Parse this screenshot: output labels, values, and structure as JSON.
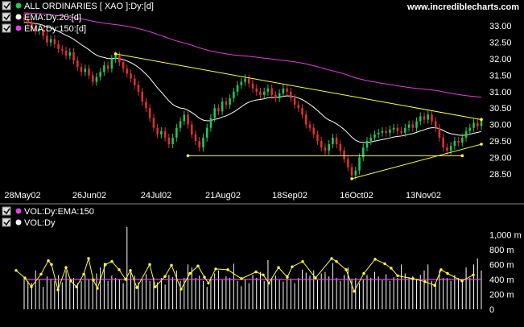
{
  "site": "www.incrediblecharts.com",
  "price_panel": {
    "legend": [
      {
        "label": "ALL ORDINARIES [ XAO ]:Dy:[d]",
        "color": "#22c55e"
      },
      {
        "label": "EMA:Dy:20:[d]",
        "color": "#ffffff"
      },
      {
        "label": "EMA:Dy:150:[d]",
        "color": "#e040e0"
      }
    ]
  },
  "volume_panel": {
    "legend": [
      {
        "label": "VOL:Dy:EMA:150",
        "color": "#e040e0"
      },
      {
        "label": "VOL:Dy",
        "color": "#ffffff"
      }
    ]
  },
  "chart_data": [
    {
      "type": "candlestick",
      "ylim": [
        28.2,
        33.3
      ],
      "y_ticks": [
        "33.00",
        "32.50",
        "32.00",
        "31.50",
        "31.00",
        "30.50",
        "30.00",
        "29.50",
        "29.00",
        "28.50"
      ],
      "x_labels": [
        "28May02",
        "26Jun02",
        "24Jul02",
        "21Aug02",
        "18Sep02",
        "16Oct02",
        "13Nov02"
      ],
      "close": [
        33.2,
        33.1,
        32.95,
        32.85,
        32.9,
        32.7,
        32.5,
        32.6,
        32.45,
        32.3,
        32.25,
        32.1,
        32.2,
        31.95,
        31.75,
        31.6,
        31.7,
        31.5,
        31.3,
        31.45,
        31.6,
        31.8,
        31.7,
        32.0,
        32.1,
        31.9,
        31.7,
        31.55,
        31.4,
        31.2,
        31.0,
        30.7,
        30.5,
        30.2,
        29.9,
        29.7,
        29.8,
        29.6,
        29.4,
        29.6,
        29.9,
        30.1,
        30.3,
        30.0,
        29.7,
        29.5,
        29.3,
        29.6,
        29.9,
        30.2,
        30.5,
        30.4,
        30.7,
        30.6,
        30.8,
        31.0,
        31.2,
        31.3,
        31.4,
        31.25,
        31.1,
        31.0,
        30.9,
        31.0,
        31.1,
        30.9,
        30.8,
        30.95,
        31.1,
        31.0,
        30.8,
        30.6,
        30.5,
        30.3,
        30.0,
        29.9,
        29.7,
        29.5,
        29.3,
        29.2,
        29.4,
        29.6,
        29.4,
        29.2,
        28.95,
        28.7,
        28.45,
        28.6,
        29.0,
        29.3,
        29.5,
        29.6,
        29.7,
        29.75,
        29.8,
        29.75,
        29.85,
        29.9,
        29.8,
        29.75,
        29.9,
        30.0,
        29.9,
        30.1,
        30.25,
        30.15,
        30.3,
        30.1,
        29.9,
        29.6,
        29.3,
        29.2,
        29.35,
        29.5,
        29.45,
        29.6,
        29.8,
        29.9,
        30.05,
        29.95,
        30.1
      ]
    },
    {
      "type": "bar",
      "ylim": [
        0,
        1100
      ],
      "y_ticks": [
        "1,000 m",
        "800 m",
        "600 m",
        "400 m",
        "200 m",
        "0"
      ],
      "ema": 400,
      "values": [
        420,
        380,
        350,
        520,
        400,
        300,
        440,
        410,
        380,
        460,
        360,
        520,
        390,
        420,
        350,
        380,
        460,
        400,
        430,
        480,
        560,
        620,
        380,
        450,
        420,
        400,
        350,
        1100,
        540,
        450,
        360,
        400,
        470,
        380,
        420,
        360,
        420,
        330,
        460,
        430,
        520,
        380,
        420,
        600,
        560,
        420,
        450,
        380,
        300,
        430,
        480,
        520,
        390,
        440,
        420,
        610,
        380,
        310,
        400,
        350,
        460,
        420,
        500,
        380,
        660,
        420,
        450,
        390,
        370,
        460,
        410,
        350,
        420,
        530,
        490,
        450,
        520,
        390,
        480,
        500,
        440,
        620,
        420,
        380,
        460,
        560,
        410,
        420,
        350,
        400,
        460,
        420,
        500,
        440,
        390,
        470,
        380,
        430,
        420,
        600,
        480,
        430,
        440,
        410,
        460,
        520,
        600,
        380,
        360,
        520,
        420,
        420,
        380,
        460,
        420,
        380,
        560,
        420,
        600,
        680,
        520
      ]
    }
  ]
}
